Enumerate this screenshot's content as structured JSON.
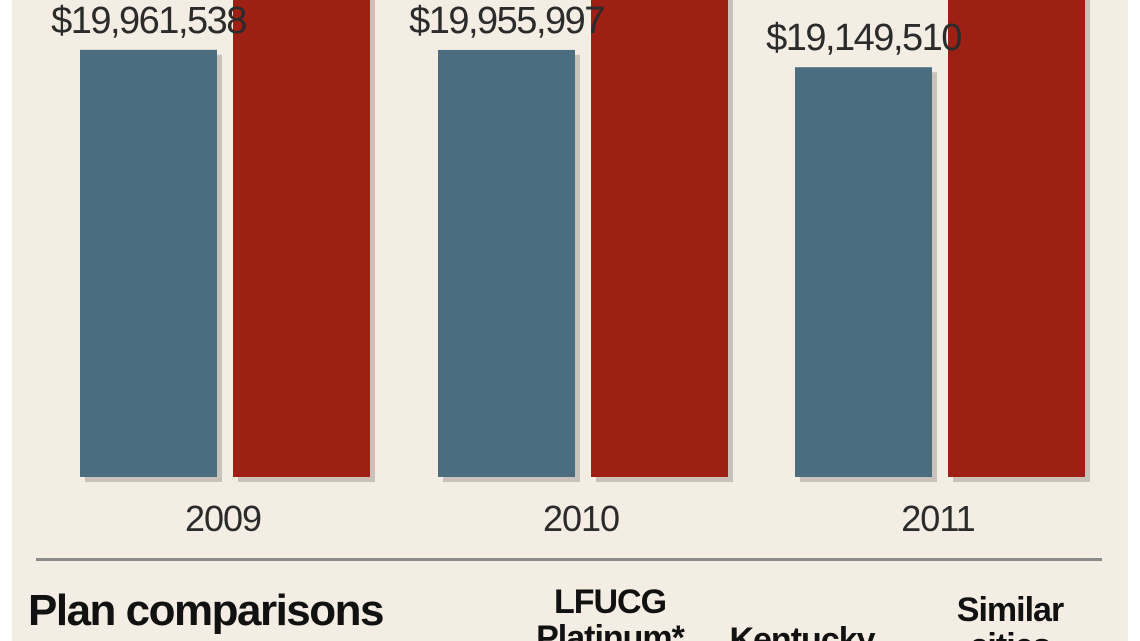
{
  "chart_data": {
    "type": "bar",
    "categories": [
      "2009",
      "2010",
      "2011"
    ],
    "series": [
      {
        "values": [
          19961538,
          19955997,
          19149510
        ],
        "labels": [
          "$19,961,538",
          "$19,955,997",
          "$19,149,510"
        ]
      },
      {
        "values": [
          27000000,
          26500000,
          29000000
        ],
        "labels": [
          "",
          "",
          ""
        ]
      }
    ],
    "colors": [
      "#4a6e80",
      "#9e1f14"
    ],
    "ylim": [
      0,
      30000000
    ],
    "title": "",
    "xlabel": "",
    "ylabel": ""
  },
  "comparisons": {
    "title": "Plan comparisons",
    "columns": [
      "LFUCG\nPlatinum*",
      "Kentucky",
      "Similar\ncities"
    ]
  }
}
